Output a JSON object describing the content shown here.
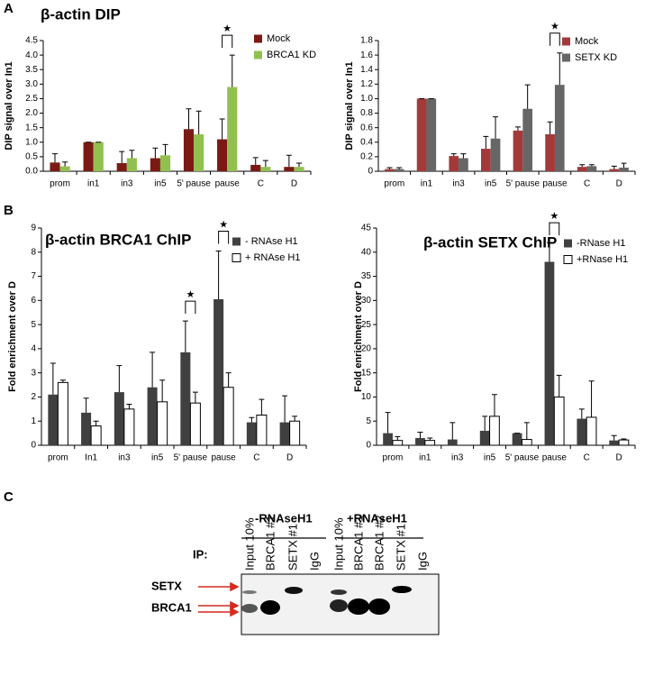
{
  "panels": {
    "a": "A",
    "b": "B",
    "c": "C"
  },
  "chart_data": [
    {
      "type": "bar",
      "title": "β-actin DIP",
      "y_label": "DIP signal over In1",
      "categories": [
        "prom",
        "in1",
        "in3",
        "in5",
        "5' pause",
        "pause",
        "C",
        "D"
      ],
      "series": [
        {
          "name": "Mock",
          "color": "#7b1a14",
          "values": [
            0.3,
            1.0,
            0.28,
            0.45,
            1.45,
            1.1,
            0.22,
            0.15
          ],
          "errors": [
            0.3,
            0,
            0.4,
            0.35,
            0.7,
            0.7,
            0.25,
            0.4
          ]
        },
        {
          "name": "BRCA1 KD",
          "color": "#92c050",
          "values": [
            0.17,
            1.0,
            0.45,
            0.55,
            1.27,
            2.9,
            0.15,
            0.15
          ],
          "errors": [
            0.15,
            0,
            0.27,
            0.37,
            0.8,
            1.1,
            0.22,
            0.13
          ]
        }
      ],
      "ylim": [
        0,
        4.5
      ],
      "yticks": [
        {
          "value": 0,
          "label": "0.0"
        },
        0.5,
        {
          "value": 1,
          "label": "1.0"
        },
        1.5,
        {
          "value": 2,
          "label": "2.0"
        },
        2.5,
        {
          "value": 3,
          "label": "3.0"
        },
        3.5,
        {
          "value": 4,
          "label": "4.0"
        },
        4.5
      ],
      "significance": [
        {
          "category": "pause",
          "label": "★"
        }
      ]
    },
    {
      "type": "bar",
      "y_label": "DIP signal over In1",
      "categories": [
        "prom",
        "in1",
        "in3",
        "in5",
        "5' pause",
        "pause",
        "C",
        "D"
      ],
      "series": [
        {
          "name": "Mock",
          "color": "#a33a3a",
          "values": [
            0.03,
            1.0,
            0.21,
            0.31,
            0.56,
            0.51,
            0.06,
            0.03
          ],
          "errors": [
            0.02,
            0,
            0.03,
            0.17,
            0.05,
            0.17,
            0.03,
            0.04
          ]
        },
        {
          "name": "SETX KD",
          "color": "#666666",
          "values": [
            0.03,
            1.0,
            0.18,
            0.45,
            0.86,
            1.19,
            0.07,
            0.05
          ],
          "errors": [
            0.02,
            0,
            0.06,
            0.3,
            0.33,
            0.44,
            0.02,
            0.06
          ]
        }
      ],
      "ylim": [
        0,
        1.8
      ],
      "yticks": [
        0,
        0.2,
        0.4,
        0.6,
        0.8,
        {
          "value": 1,
          "label": "1.0"
        },
        1.2,
        1.4,
        1.6,
        1.8
      ],
      "significance": [
        {
          "category": "pause",
          "label": "★"
        }
      ]
    },
    {
      "type": "bar",
      "title": "β-actin BRCA1 ChIP",
      "y_label": "Fold enrichment over D",
      "categories": [
        "prom",
        "In1",
        "in3",
        "in5",
        "5' pause",
        "pause",
        "C",
        "D"
      ],
      "series": [
        {
          "name": "- RNAse H1",
          "color": "#404040",
          "values": [
            2.1,
            1.35,
            2.2,
            2.4,
            3.85,
            6.05,
            0.95,
            0.95
          ],
          "errors": [
            1.3,
            0.6,
            1.1,
            1.45,
            1.3,
            2.0,
            0.2,
            1.1
          ]
        },
        {
          "name": "+ RNAse H1",
          "color": "#ffffff",
          "values": [
            2.6,
            0.8,
            1.5,
            1.8,
            1.75,
            2.4,
            1.25,
            1.0
          ],
          "errors": [
            0.1,
            0.2,
            0.2,
            0.9,
            0.45,
            0.6,
            0.65,
            0.2
          ]
        }
      ],
      "ylim": [
        0,
        9
      ],
      "yticks": [
        0,
        1,
        2,
        3,
        4,
        5,
        6,
        7,
        8,
        9
      ],
      "significance": [
        {
          "category": "5' pause",
          "label": "★"
        },
        {
          "category": "pause",
          "label": "★"
        }
      ]
    },
    {
      "type": "bar",
      "title": "β-actin SETX ChIP",
      "y_label": "Fold enrichment over D",
      "categories": [
        "prom",
        "in1",
        "in3",
        "in5",
        "5' pause",
        "pause",
        "C",
        "D"
      ],
      "series": [
        {
          "name": "-RNase H1",
          "color": "#404040",
          "values": [
            2.5,
            1.5,
            1.2,
            3,
            2.5,
            38,
            5.5,
            1
          ],
          "errors": [
            4.3,
            1.2,
            3.5,
            3,
            0,
            4,
            2,
            1
          ]
        },
        {
          "name": "+RNase H1",
          "color": "#ffffff",
          "values": [
            1,
            1,
            0,
            6,
            1.2,
            10,
            5.8,
            1.1
          ],
          "errors": [
            0.8,
            0.5,
            0,
            4.5,
            3.5,
            4.5,
            7.5,
            0.2
          ]
        }
      ],
      "ylim": [
        0,
        45
      ],
      "yticks": [
        0,
        5,
        10,
        15,
        20,
        25,
        30,
        35,
        40,
        45
      ],
      "significance": [
        {
          "category": "pause",
          "label": "★"
        }
      ]
    }
  ],
  "blot": {
    "groups": [
      "-RNAseH1",
      "+RNAseH1"
    ],
    "ip_label": "IP:",
    "lanes": [
      "Input 10%",
      "BRCA1 #1",
      "SETX #1",
      "IgG",
      "Input 10%",
      "BRCA1 #1",
      "BRCA1 #2",
      "SETX #1",
      "IgG"
    ],
    "proteins": [
      "SETX",
      "BRCA1"
    ]
  }
}
